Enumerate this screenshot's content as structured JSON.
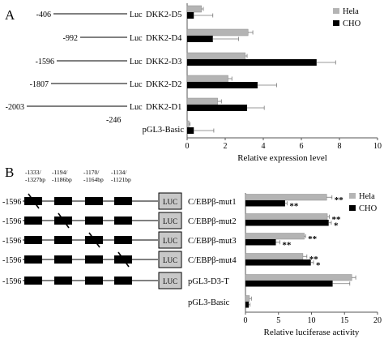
{
  "panel_a": {
    "panel_label": "A",
    "luc_label": "Luc",
    "constructs": [
      {
        "name": "DKK2-D5",
        "position": "-406"
      },
      {
        "name": "DKK2-D4",
        "position": "-992"
      },
      {
        "name": "DKK2-D3",
        "position": "-1596"
      },
      {
        "name": "DKK2-D2",
        "position": "-1807"
      },
      {
        "name": "DKK2-D1",
        "position": "-2003"
      },
      {
        "name": "pGL3-Basic",
        "position": "-246"
      }
    ]
  },
  "panel_b": {
    "panel_label": "B",
    "start_position": "-1596",
    "box_label": "LUC",
    "site_labels": [
      [
        "-1333/",
        "-1327bp"
      ],
      [
        "-1194/",
        "-1186bp"
      ],
      [
        "-1170/",
        "-1164bp"
      ],
      [
        "-1134/",
        "-1121bp"
      ]
    ],
    "constructs": [
      {
        "name": "C/EBPβ-mut1",
        "mutated_site": 1,
        "has_diagram": true
      },
      {
        "name": "C/EBPβ-mut2",
        "mutated_site": 2,
        "has_diagram": true
      },
      {
        "name": "C/EBPβ-mut3",
        "mutated_site": 3,
        "has_diagram": true
      },
      {
        "name": "C/EBPβ-mut4",
        "mutated_site": 4,
        "has_diagram": true
      },
      {
        "name": "pGL3-D3-T",
        "mutated_site": 0,
        "has_diagram": true
      },
      {
        "name": "pGL3-Basic",
        "mutated_site": 0,
        "has_diagram": false
      }
    ]
  },
  "chart_data": [
    {
      "type": "bar",
      "orientation": "horizontal",
      "categories": [
        "DKK2-D5",
        "DKK2-D4",
        "DKK2-D3",
        "DKK2-D2",
        "DKK2-D1",
        "pGL3-Basic"
      ],
      "series": [
        {
          "name": "Hela",
          "values": [
            0.75,
            3.2,
            3.05,
            2.15,
            1.6,
            0.1
          ],
          "errors": [
            0.1,
            0.25,
            0.1,
            0.2,
            0.2,
            0.05
          ],
          "color": "#b4b4b4"
        },
        {
          "name": "CHO",
          "values": [
            0.35,
            1.35,
            6.8,
            3.7,
            3.15,
            0.35
          ],
          "errors": [
            1.0,
            1.35,
            1.0,
            1.0,
            0.9,
            1.05
          ],
          "color": "#000000"
        }
      ],
      "xlabel": "Relative expression level",
      "xlim": [
        0,
        10
      ],
      "xticks": [
        0,
        2,
        4,
        6,
        8,
        10
      ],
      "legend_placement": "top-right",
      "grid": false
    },
    {
      "type": "bar",
      "orientation": "horizontal",
      "categories": [
        "C/EBPβ-mut1",
        "C/EBPβ-mut2",
        "C/EBPβ-mut3",
        "C/EBPβ-mut4",
        "pGL3-D3-T",
        "pGL3-Basic"
      ],
      "series": [
        {
          "name": "Hela",
          "values": [
            12.3,
            12.4,
            8.9,
            8.7,
            16.1,
            0.6
          ],
          "errors": [
            0.8,
            0.3,
            0.2,
            0.6,
            0.6,
            0.3
          ],
          "color": "#b4b4b4"
        },
        {
          "name": "CHO",
          "values": [
            6.0,
            12.6,
            4.6,
            9.9,
            13.2,
            0.5
          ],
          "errors": [
            0.3,
            0.4,
            0.6,
            0.4,
            2.6,
            0.2
          ],
          "color": "#000000"
        }
      ],
      "annotations": [
        {
          "category": "C/EBPβ-mut1",
          "series": "Hela",
          "text": "**"
        },
        {
          "category": "C/EBPβ-mut1",
          "series": "CHO",
          "text": "**"
        },
        {
          "category": "C/EBPβ-mut2",
          "series": "Hela",
          "text": "**"
        },
        {
          "category": "C/EBPβ-mut2",
          "series": "CHO",
          "text": "*"
        },
        {
          "category": "C/EBPβ-mut3",
          "series": "Hela",
          "text": "**"
        },
        {
          "category": "C/EBPβ-mut3",
          "series": "CHO",
          "text": "**"
        },
        {
          "category": "C/EBPβ-mut4",
          "series": "Hela",
          "text": "**"
        },
        {
          "category": "C/EBPβ-mut4",
          "series": "CHO",
          "text": "*"
        }
      ],
      "xlabel": "Relative luciferase activity",
      "xlim": [
        0,
        20
      ],
      "xticks": [
        0,
        5,
        10,
        15,
        20
      ],
      "legend_placement": "top-right",
      "grid": false
    }
  ]
}
